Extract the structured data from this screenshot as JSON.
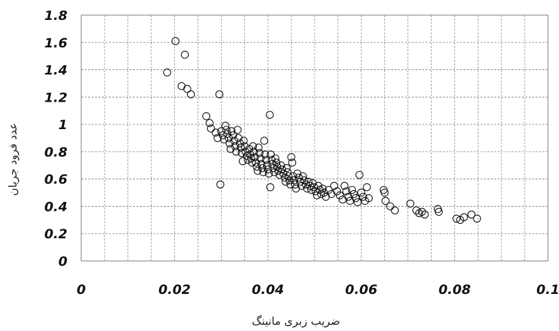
{
  "chart_data": {
    "type": "scatter",
    "title": "",
    "xlabel": "ضریب زبری مانینگ",
    "ylabel": "عدد فرود جریان",
    "xlim": [
      0,
      0.1
    ],
    "ylim": [
      0,
      1.8
    ],
    "x_ticks": [
      "0",
      "0.02",
      "0.04",
      "0.06",
      "0.08",
      "0.1"
    ],
    "y_ticks": [
      "0",
      "0.2",
      "0.4",
      "0.6",
      "0.8",
      "1",
      "1.2",
      "1.4",
      "1.6",
      "1.8"
    ],
    "grid": "dashed",
    "legend": "none",
    "marker": "open-circle",
    "marker_color": "#111111",
    "points": [
      [
        0.0184,
        1.38
      ],
      [
        0.0202,
        1.61
      ],
      [
        0.0215,
        1.28
      ],
      [
        0.0222,
        1.51
      ],
      [
        0.0227,
        1.26
      ],
      [
        0.0235,
        1.22
      ],
      [
        0.0268,
        1.06
      ],
      [
        0.0275,
        1.01
      ],
      [
        0.0278,
        0.97
      ],
      [
        0.0288,
        0.94
      ],
      [
        0.0292,
        0.9
      ],
      [
        0.0296,
        1.22
      ],
      [
        0.0298,
        0.56
      ],
      [
        0.03,
        0.95
      ],
      [
        0.0303,
        0.92
      ],
      [
        0.0306,
        0.89
      ],
      [
        0.0309,
        0.99
      ],
      [
        0.0311,
        0.96
      ],
      [
        0.0313,
        0.93
      ],
      [
        0.0316,
        0.9
      ],
      [
        0.0318,
        0.86
      ],
      [
        0.032,
        0.82
      ],
      [
        0.0322,
        0.95
      ],
      [
        0.0325,
        0.92
      ],
      [
        0.0328,
        0.88
      ],
      [
        0.033,
        0.84
      ],
      [
        0.0332,
        0.8
      ],
      [
        0.0335,
        0.96
      ],
      [
        0.0337,
        0.9
      ],
      [
        0.034,
        0.86
      ],
      [
        0.0342,
        0.83
      ],
      [
        0.0344,
        0.79
      ],
      [
        0.0346,
        0.73
      ],
      [
        0.0348,
        0.88
      ],
      [
        0.035,
        0.84
      ],
      [
        0.0352,
        0.8
      ],
      [
        0.0355,
        0.77
      ],
      [
        0.0357,
        0.74
      ],
      [
        0.036,
        0.82
      ],
      [
        0.0362,
        0.78
      ],
      [
        0.0364,
        0.75
      ],
      [
        0.0366,
        0.72
      ],
      [
        0.0368,
        0.84
      ],
      [
        0.037,
        0.8
      ],
      [
        0.0372,
        0.76
      ],
      [
        0.0374,
        0.72
      ],
      [
        0.0376,
        0.69
      ],
      [
        0.0378,
        0.66
      ],
      [
        0.038,
        0.83
      ],
      [
        0.0382,
        0.79
      ],
      [
        0.0384,
        0.75
      ],
      [
        0.0386,
        0.71
      ],
      [
        0.0388,
        0.68
      ],
      [
        0.039,
        0.65
      ],
      [
        0.0392,
        0.88
      ],
      [
        0.0394,
        0.78
      ],
      [
        0.0396,
        0.74
      ],
      [
        0.0398,
        0.7
      ],
      [
        0.04,
        0.67
      ],
      [
        0.0402,
        0.64
      ],
      [
        0.0404,
        1.07
      ],
      [
        0.0405,
        0.54
      ],
      [
        0.0406,
        0.78
      ],
      [
        0.0408,
        0.74
      ],
      [
        0.041,
        0.71
      ],
      [
        0.0412,
        0.68
      ],
      [
        0.0414,
        0.65
      ],
      [
        0.0416,
        0.75
      ],
      [
        0.0418,
        0.72
      ],
      [
        0.042,
        0.69
      ],
      [
        0.0422,
        0.66
      ],
      [
        0.0425,
        0.63
      ],
      [
        0.0428,
        0.7
      ],
      [
        0.043,
        0.67
      ],
      [
        0.0433,
        0.64
      ],
      [
        0.0436,
        0.61
      ],
      [
        0.0438,
        0.58
      ],
      [
        0.044,
        0.68
      ],
      [
        0.0442,
        0.65
      ],
      [
        0.0444,
        0.62
      ],
      [
        0.0446,
        0.59
      ],
      [
        0.0448,
        0.56
      ],
      [
        0.045,
        0.76
      ],
      [
        0.0452,
        0.72
      ],
      [
        0.0454,
        0.62
      ],
      [
        0.0456,
        0.59
      ],
      [
        0.0458,
        0.56
      ],
      [
        0.046,
        0.53
      ],
      [
        0.0463,
        0.64
      ],
      [
        0.0466,
        0.61
      ],
      [
        0.0469,
        0.58
      ],
      [
        0.0472,
        0.55
      ],
      [
        0.0475,
        0.62
      ],
      [
        0.0478,
        0.59
      ],
      [
        0.0481,
        0.56
      ],
      [
        0.0484,
        0.53
      ],
      [
        0.0487,
        0.58
      ],
      [
        0.049,
        0.55
      ],
      [
        0.0493,
        0.52
      ],
      [
        0.0496,
        0.57
      ],
      [
        0.0499,
        0.54
      ],
      [
        0.0502,
        0.51
      ],
      [
        0.0505,
        0.48
      ],
      [
        0.0508,
        0.55
      ],
      [
        0.0511,
        0.52
      ],
      [
        0.0514,
        0.49
      ],
      [
        0.0517,
        0.53
      ],
      [
        0.052,
        0.5
      ],
      [
        0.0524,
        0.47
      ],
      [
        0.053,
        0.52
      ],
      [
        0.0536,
        0.49
      ],
      [
        0.0542,
        0.55
      ],
      [
        0.0548,
        0.51
      ],
      [
        0.0554,
        0.48
      ],
      [
        0.056,
        0.45
      ],
      [
        0.0564,
        0.55
      ],
      [
        0.0568,
        0.51
      ],
      [
        0.0572,
        0.47
      ],
      [
        0.0576,
        0.44
      ],
      [
        0.058,
        0.52
      ],
      [
        0.0584,
        0.49
      ],
      [
        0.0588,
        0.46
      ],
      [
        0.0592,
        0.43
      ],
      [
        0.0596,
        0.63
      ],
      [
        0.06,
        0.5
      ],
      [
        0.0604,
        0.47
      ],
      [
        0.0608,
        0.44
      ],
      [
        0.0612,
        0.54
      ],
      [
        0.0616,
        0.46
      ],
      [
        0.0648,
        0.52
      ],
      [
        0.065,
        0.5
      ],
      [
        0.0652,
        0.44
      ],
      [
        0.0662,
        0.4
      ],
      [
        0.0672,
        0.37
      ],
      [
        0.0705,
        0.42
      ],
      [
        0.0718,
        0.37
      ],
      [
        0.0724,
        0.35
      ],
      [
        0.073,
        0.36
      ],
      [
        0.0736,
        0.34
      ],
      [
        0.0764,
        0.38
      ],
      [
        0.0766,
        0.36
      ],
      [
        0.0804,
        0.31
      ],
      [
        0.0812,
        0.3
      ],
      [
        0.082,
        0.32
      ],
      [
        0.0836,
        0.34
      ],
      [
        0.0848,
        0.31
      ]
    ]
  }
}
